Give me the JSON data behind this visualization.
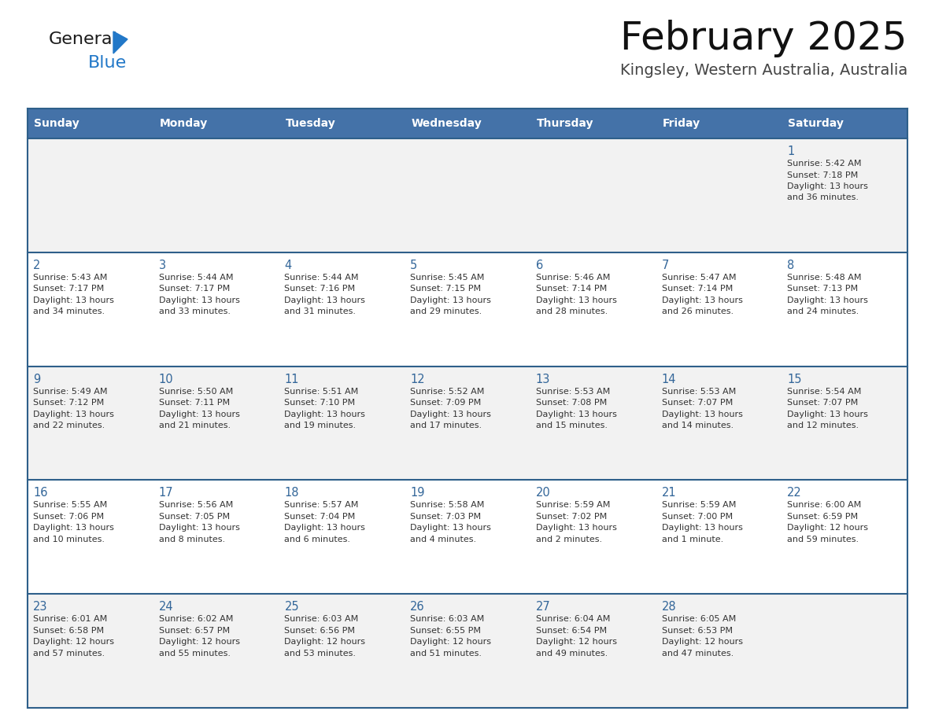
{
  "title": "February 2025",
  "subtitle": "Kingsley, Western Australia, Australia",
  "header_bg": "#4472A8",
  "header_text_color": "#FFFFFF",
  "day_names": [
    "Sunday",
    "Monday",
    "Tuesday",
    "Wednesday",
    "Thursday",
    "Friday",
    "Saturday"
  ],
  "cell_bg_odd": "#F2F2F2",
  "cell_bg_even": "#FFFFFF",
  "header_border_color": "#2E5F8A",
  "day_number_color": "#336699",
  "text_color": "#333333",
  "days": [
    {
      "day": 1,
      "col": 6,
      "row": 0,
      "sunrise": "5:42 AM",
      "sunset": "7:18 PM",
      "daylight": "13 hours",
      "daylight2": "and 36 minutes."
    },
    {
      "day": 2,
      "col": 0,
      "row": 1,
      "sunrise": "5:43 AM",
      "sunset": "7:17 PM",
      "daylight": "13 hours",
      "daylight2": "and 34 minutes."
    },
    {
      "day": 3,
      "col": 1,
      "row": 1,
      "sunrise": "5:44 AM",
      "sunset": "7:17 PM",
      "daylight": "13 hours",
      "daylight2": "and 33 minutes."
    },
    {
      "day": 4,
      "col": 2,
      "row": 1,
      "sunrise": "5:44 AM",
      "sunset": "7:16 PM",
      "daylight": "13 hours",
      "daylight2": "and 31 minutes."
    },
    {
      "day": 5,
      "col": 3,
      "row": 1,
      "sunrise": "5:45 AM",
      "sunset": "7:15 PM",
      "daylight": "13 hours",
      "daylight2": "and 29 minutes."
    },
    {
      "day": 6,
      "col": 4,
      "row": 1,
      "sunrise": "5:46 AM",
      "sunset": "7:14 PM",
      "daylight": "13 hours",
      "daylight2": "and 28 minutes."
    },
    {
      "day": 7,
      "col": 5,
      "row": 1,
      "sunrise": "5:47 AM",
      "sunset": "7:14 PM",
      "daylight": "13 hours",
      "daylight2": "and 26 minutes."
    },
    {
      "day": 8,
      "col": 6,
      "row": 1,
      "sunrise": "5:48 AM",
      "sunset": "7:13 PM",
      "daylight": "13 hours",
      "daylight2": "and 24 minutes."
    },
    {
      "day": 9,
      "col": 0,
      "row": 2,
      "sunrise": "5:49 AM",
      "sunset": "7:12 PM",
      "daylight": "13 hours",
      "daylight2": "and 22 minutes."
    },
    {
      "day": 10,
      "col": 1,
      "row": 2,
      "sunrise": "5:50 AM",
      "sunset": "7:11 PM",
      "daylight": "13 hours",
      "daylight2": "and 21 minutes."
    },
    {
      "day": 11,
      "col": 2,
      "row": 2,
      "sunrise": "5:51 AM",
      "sunset": "7:10 PM",
      "daylight": "13 hours",
      "daylight2": "and 19 minutes."
    },
    {
      "day": 12,
      "col": 3,
      "row": 2,
      "sunrise": "5:52 AM",
      "sunset": "7:09 PM",
      "daylight": "13 hours",
      "daylight2": "and 17 minutes."
    },
    {
      "day": 13,
      "col": 4,
      "row": 2,
      "sunrise": "5:53 AM",
      "sunset": "7:08 PM",
      "daylight": "13 hours",
      "daylight2": "and 15 minutes."
    },
    {
      "day": 14,
      "col": 5,
      "row": 2,
      "sunrise": "5:53 AM",
      "sunset": "7:07 PM",
      "daylight": "13 hours",
      "daylight2": "and 14 minutes."
    },
    {
      "day": 15,
      "col": 6,
      "row": 2,
      "sunrise": "5:54 AM",
      "sunset": "7:07 PM",
      "daylight": "13 hours",
      "daylight2": "and 12 minutes."
    },
    {
      "day": 16,
      "col": 0,
      "row": 3,
      "sunrise": "5:55 AM",
      "sunset": "7:06 PM",
      "daylight": "13 hours",
      "daylight2": "and 10 minutes."
    },
    {
      "day": 17,
      "col": 1,
      "row": 3,
      "sunrise": "5:56 AM",
      "sunset": "7:05 PM",
      "daylight": "13 hours",
      "daylight2": "and 8 minutes."
    },
    {
      "day": 18,
      "col": 2,
      "row": 3,
      "sunrise": "5:57 AM",
      "sunset": "7:04 PM",
      "daylight": "13 hours",
      "daylight2": "and 6 minutes."
    },
    {
      "day": 19,
      "col": 3,
      "row": 3,
      "sunrise": "5:58 AM",
      "sunset": "7:03 PM",
      "daylight": "13 hours",
      "daylight2": "and 4 minutes."
    },
    {
      "day": 20,
      "col": 4,
      "row": 3,
      "sunrise": "5:59 AM",
      "sunset": "7:02 PM",
      "daylight": "13 hours",
      "daylight2": "and 2 minutes."
    },
    {
      "day": 21,
      "col": 5,
      "row": 3,
      "sunrise": "5:59 AM",
      "sunset": "7:00 PM",
      "daylight": "13 hours",
      "daylight2": "and 1 minute."
    },
    {
      "day": 22,
      "col": 6,
      "row": 3,
      "sunrise": "6:00 AM",
      "sunset": "6:59 PM",
      "daylight": "12 hours",
      "daylight2": "and 59 minutes."
    },
    {
      "day": 23,
      "col": 0,
      "row": 4,
      "sunrise": "6:01 AM",
      "sunset": "6:58 PM",
      "daylight": "12 hours",
      "daylight2": "and 57 minutes."
    },
    {
      "day": 24,
      "col": 1,
      "row": 4,
      "sunrise": "6:02 AM",
      "sunset": "6:57 PM",
      "daylight": "12 hours",
      "daylight2": "and 55 minutes."
    },
    {
      "day": 25,
      "col": 2,
      "row": 4,
      "sunrise": "6:03 AM",
      "sunset": "6:56 PM",
      "daylight": "12 hours",
      "daylight2": "and 53 minutes."
    },
    {
      "day": 26,
      "col": 3,
      "row": 4,
      "sunrise": "6:03 AM",
      "sunset": "6:55 PM",
      "daylight": "12 hours",
      "daylight2": "and 51 minutes."
    },
    {
      "day": 27,
      "col": 4,
      "row": 4,
      "sunrise": "6:04 AM",
      "sunset": "6:54 PM",
      "daylight": "12 hours",
      "daylight2": "and 49 minutes."
    },
    {
      "day": 28,
      "col": 5,
      "row": 4,
      "sunrise": "6:05 AM",
      "sunset": "6:53 PM",
      "daylight": "12 hours",
      "daylight2": "and 47 minutes."
    }
  ],
  "num_rows": 5,
  "logo_general_color": "#1a1a1a",
  "logo_blue_color": "#2278C8",
  "logo_triangle_color": "#2278C8"
}
